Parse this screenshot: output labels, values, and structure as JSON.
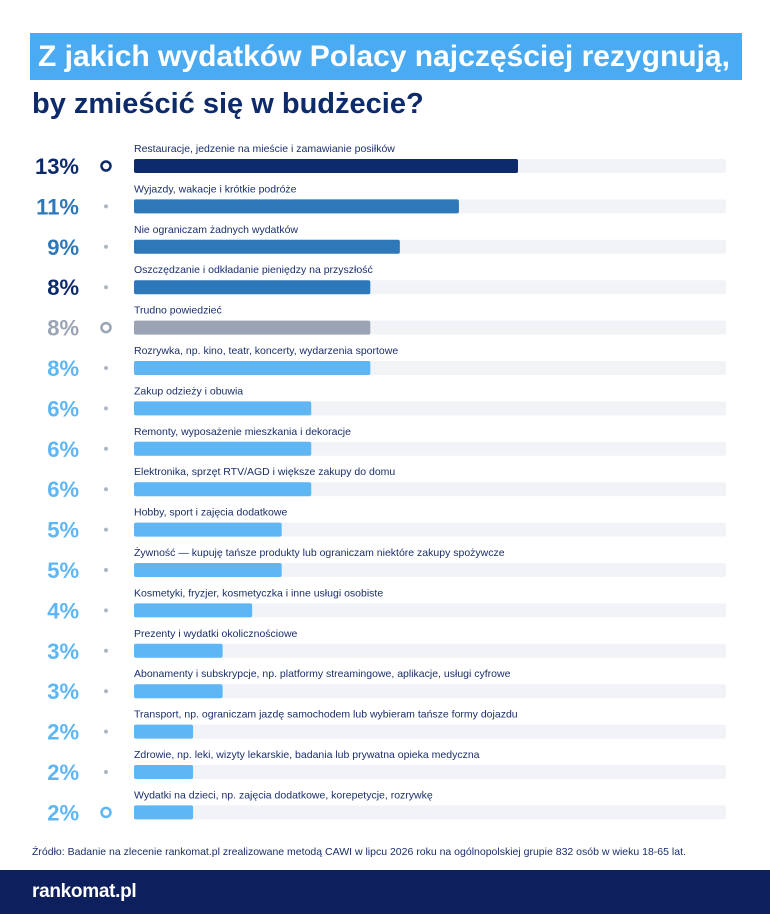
{
  "title": {
    "line1": "Z jakich wydatków Polacy najczęściej rezygnują,",
    "line2": "by zmieścić się w budżecie?"
  },
  "chart_data": {
    "type": "bar",
    "orientation": "horizontal",
    "unit": "%",
    "xlim": [
      0,
      20
    ],
    "categories": [
      "Restauracje, jedzenie na mieście i zamawianie posiłków",
      "Wyjazdy, wakacje i krótkie podróże",
      "Nie ograniczam żadnych wydatków",
      "Oszczędzanie i odkładanie pieniędzy na przyszłość",
      "Trudno powiedzieć",
      "Rozrywka, np. kino, teatr, koncerty, wydarzenia sportowe",
      "Zakup odzieży i obuwia",
      "Remonty, wyposażenie mieszkania i dekoracje",
      "Elektronika, sprzęt RTV/AGD i większe zakupy do domu",
      "Hobby, sport i zajęcia dodatkowe",
      "Żywność — kupuję tańsze produkty lub ograniczam niektóre zakupy spożywcze",
      "Kosmetyki, fryzjer, kosmetyczka i inne usługi osobiste",
      "Prezenty i wydatki okolicznościowe",
      "Abonamenty i subskrypcje, np. platformy streamingowe, aplikacje, usługi cyfrowe",
      "Transport, np. ograniczam jazdę samochodem lub wybieram tańsze formy dojazdu",
      "Zdrowie, np. leki, wizyty lekarskie, badania lub prywatna opieka medyczna",
      "Wydatki na dzieci, np. zajęcia dodatkowe, korepetycje, rozrywkę"
    ],
    "values": [
      13,
      11,
      9,
      8,
      8,
      8,
      6,
      6,
      6,
      5,
      5,
      4,
      3,
      3,
      2,
      2,
      2
    ],
    "value_labels": [
      "13%",
      "11%",
      "9%",
      "8%",
      "8%",
      "8%",
      "6%",
      "6%",
      "6%",
      "5%",
      "5%",
      "4%",
      "3%",
      "3%",
      "2%",
      "2%",
      "2%"
    ],
    "bar_colors": [
      "#0d2a6b",
      "#2e77b8",
      "#2e77b8",
      "#2e77b8",
      "#9aa4b5",
      "#5fb6f5",
      "#5fb6f5",
      "#5fb6f5",
      "#5fb6f5",
      "#5fb6f5",
      "#5fb6f5",
      "#5fb6f5",
      "#5fb6f5",
      "#5fb6f5",
      "#5fb6f5",
      "#5fb6f5",
      "#5fb6f5"
    ],
    "value_label_colors": [
      "#0d2a6b",
      "#2e77b8",
      "#2e77b8",
      "#0d2a6b",
      "#9aa4b5",
      "#5fb6f5",
      "#5fb6f5",
      "#5fb6f5",
      "#5fb6f5",
      "#5fb6f5",
      "#5fb6f5",
      "#5fb6f5",
      "#5fb6f5",
      "#5fb6f5",
      "#5fb6f5",
      "#5fb6f5",
      "#5fb6f5"
    ],
    "track_color": "#f1f3f6"
  },
  "source": "Źródło: Badanie na zlecenie rankomat.pl zrealizowane metodą CAWI w lipcu 2026 roku na ogólnopolskiej grupie 832 osób w wieku 18-65 lat.",
  "brand": {
    "logo_text": "rankomat.pl",
    "footer_color": "#0d1f5c"
  }
}
